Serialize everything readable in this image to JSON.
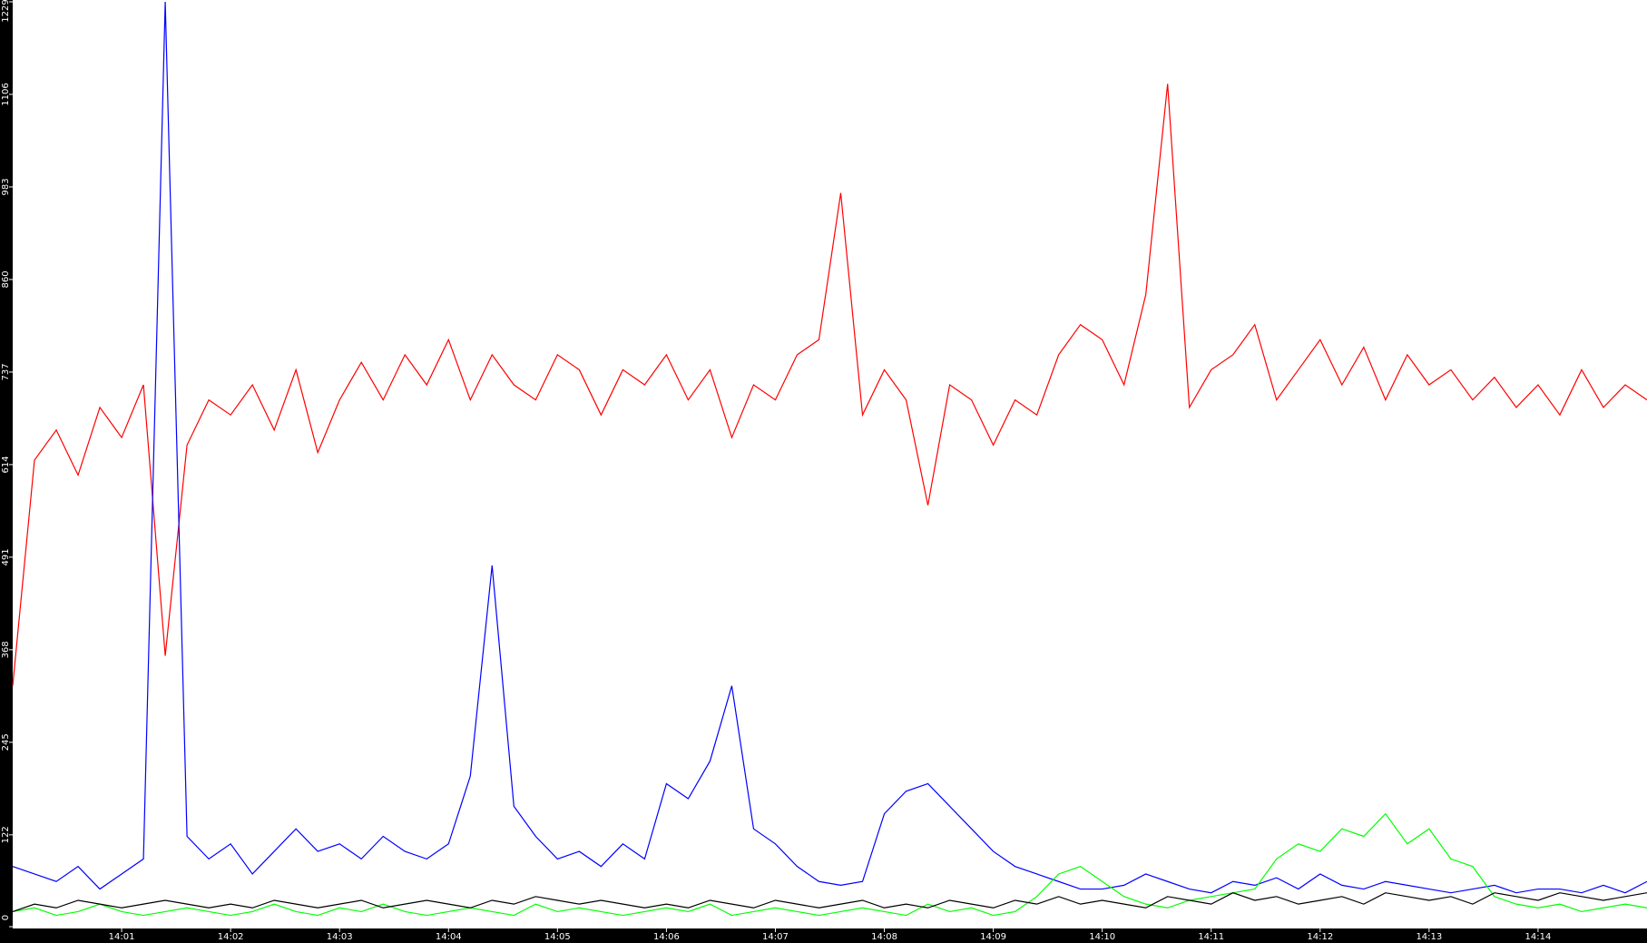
{
  "chart_data": {
    "type": "line",
    "x": [
      0,
      0.2,
      0.4,
      0.6,
      0.8,
      1,
      1.2,
      1.4,
      1.6,
      1.8,
      2,
      2.2,
      2.4,
      2.6,
      2.8,
      3,
      3.2,
      3.4,
      3.6,
      3.8,
      4,
      4.2,
      4.4,
      4.6,
      4.8,
      5,
      5.2,
      5.4,
      5.6,
      5.8,
      6,
      6.2,
      6.4,
      6.6,
      6.8,
      7,
      7.2,
      7.4,
      7.6,
      7.8,
      8,
      8.2,
      8.4,
      8.6,
      8.8,
      9,
      9.2,
      9.4,
      9.6,
      9.8,
      10,
      10.2,
      10.4,
      10.6,
      10.8,
      11,
      11.2,
      11.4,
      11.6,
      11.8,
      12,
      12.2,
      12.4,
      12.6,
      12.8,
      13,
      13.2,
      13.4,
      13.6,
      13.8,
      14,
      14.2,
      14.4,
      14.6,
      14.8,
      15
    ],
    "series": [
      {
        "color": "#ff0000",
        "values": [
          320,
          620,
          660,
          600,
          690,
          650,
          720,
          360,
          640,
          700,
          680,
          720,
          660,
          740,
          630,
          700,
          750,
          700,
          760,
          720,
          780,
          700,
          760,
          720,
          700,
          760,
          740,
          680,
          740,
          720,
          760,
          700,
          740,
          650,
          720,
          700,
          760,
          780,
          975,
          680,
          740,
          700,
          560,
          720,
          700,
          640,
          700,
          680,
          760,
          800,
          780,
          720,
          840,
          1120,
          690,
          740,
          760,
          800,
          700,
          740,
          780,
          720,
          770,
          700,
          760,
          720,
          740,
          700,
          730,
          690,
          720,
          680,
          740,
          690,
          720,
          700
        ]
      },
      {
        "color": "#0000ff",
        "values": [
          80,
          70,
          60,
          80,
          50,
          70,
          90,
          1229,
          120,
          90,
          110,
          70,
          100,
          130,
          100,
          110,
          90,
          120,
          100,
          90,
          110,
          200,
          480,
          160,
          120,
          90,
          100,
          80,
          110,
          90,
          190,
          170,
          220,
          320,
          130,
          110,
          80,
          60,
          55,
          60,
          150,
          180,
          190,
          160,
          130,
          100,
          80,
          70,
          60,
          50,
          50,
          55,
          70,
          60,
          50,
          45,
          60,
          55,
          65,
          50,
          70,
          55,
          50,
          60,
          55,
          50,
          45,
          50,
          55,
          45,
          50,
          50,
          45,
          55,
          45,
          60
        ]
      },
      {
        "color": "#00ff00",
        "values": [
          20,
          25,
          15,
          20,
          30,
          20,
          15,
          20,
          25,
          20,
          15,
          20,
          30,
          20,
          15,
          25,
          20,
          30,
          20,
          15,
          20,
          25,
          20,
          15,
          30,
          20,
          25,
          20,
          15,
          20,
          25,
          20,
          30,
          15,
          20,
          25,
          20,
          15,
          20,
          25,
          20,
          15,
          30,
          20,
          25,
          15,
          20,
          40,
          70,
          80,
          60,
          40,
          30,
          25,
          35,
          40,
          45,
          50,
          90,
          110,
          100,
          130,
          120,
          150,
          110,
          130,
          90,
          80,
          40,
          30,
          25,
          30,
          20,
          25,
          30,
          25
        ]
      },
      {
        "color": "#000000",
        "values": [
          20,
          30,
          25,
          35,
          30,
          25,
          30,
          35,
          30,
          25,
          30,
          25,
          35,
          30,
          25,
          30,
          35,
          25,
          30,
          35,
          30,
          25,
          35,
          30,
          40,
          35,
          30,
          35,
          30,
          25,
          30,
          25,
          35,
          30,
          25,
          35,
          30,
          25,
          30,
          35,
          25,
          30,
          25,
          35,
          30,
          25,
          35,
          30,
          40,
          30,
          35,
          30,
          25,
          40,
          35,
          30,
          45,
          35,
          40,
          30,
          35,
          40,
          30,
          45,
          40,
          35,
          40,
          30,
          45,
          40,
          35,
          45,
          40,
          35,
          40,
          45
        ]
      }
    ],
    "xlim": [
      0,
      15
    ],
    "xticks": [
      {
        "value": 1,
        "label": "14:01"
      },
      {
        "value": 2,
        "label": "14:02"
      },
      {
        "value": 3,
        "label": "14:03"
      },
      {
        "value": 4,
        "label": "14:04"
      },
      {
        "value": 5,
        "label": "14:05"
      },
      {
        "value": 6,
        "label": "14:06"
      },
      {
        "value": 7,
        "label": "14:07"
      },
      {
        "value": 8,
        "label": "14:08"
      },
      {
        "value": 9,
        "label": "14:09"
      },
      {
        "value": 10,
        "label": "14:10"
      },
      {
        "value": 11,
        "label": "14:11"
      },
      {
        "value": 12,
        "label": "14:12"
      },
      {
        "value": 13,
        "label": "14:13"
      },
      {
        "value": 14,
        "label": "14:14"
      }
    ],
    "ylim": [
      0,
      1229
    ],
    "yticks": [
      0,
      122,
      245,
      368,
      491,
      614,
      737,
      860,
      983,
      1106,
      1229
    ]
  }
}
